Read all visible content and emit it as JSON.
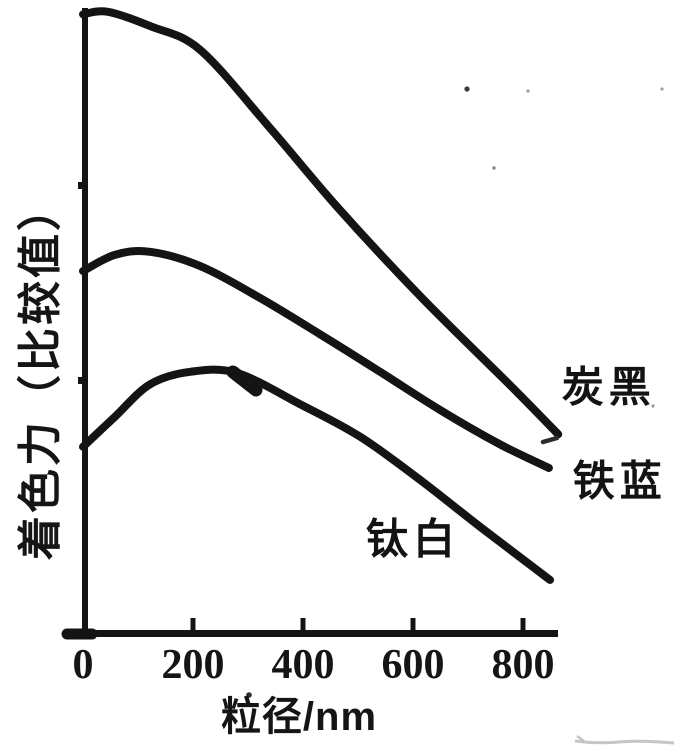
{
  "chart_data": {
    "type": "line",
    "title": "",
    "xlabel": "粒径/nm",
    "ylabel": "着色力（比较值）",
    "xlim": [
      0,
      865
    ],
    "ylim": [
      0,
      100
    ],
    "xticks": [
      0,
      200,
      400,
      600,
      800
    ],
    "xtick_labels": [
      "0",
      "200",
      "400",
      "600",
      "800"
    ],
    "yticks": [],
    "grid": false,
    "legend_position": "right-of-curve-ends",
    "ink_color": "#141414",
    "background_color": "#ffffff",
    "series": [
      {
        "id": "carbon-black",
        "name": "炭黑",
        "color": "#141414",
        "label_xy": [
          956,
          39.8
        ],
        "points": [
          [
            0,
            99.0
          ],
          [
            45,
            99.4
          ],
          [
            122,
            97.1
          ],
          [
            213,
            93.3
          ],
          [
            340,
            80.8
          ],
          [
            462,
            68.2
          ],
          [
            613,
            53.9
          ],
          [
            776,
            39.7
          ],
          [
            864,
            31.8
          ]
        ]
      },
      {
        "id": "iron-blue",
        "name": "铁蓝",
        "color": "#141414",
        "label_xy": [
          976,
          24.8
        ],
        "points": [
          [
            0,
            57.9
          ],
          [
            58,
            60.5
          ],
          [
            122,
            61.0
          ],
          [
            213,
            58.7
          ],
          [
            322,
            53.6
          ],
          [
            431,
            47.8
          ],
          [
            540,
            41.8
          ],
          [
            649,
            35.7
          ],
          [
            758,
            30.2
          ],
          [
            847,
            26.4
          ]
        ]
      },
      {
        "id": "titanium-white",
        "name": "钛白",
        "color": "#141414",
        "label_xy": [
          600,
          15.5
        ],
        "points": [
          [
            0,
            29.8
          ],
          [
            58,
            34.6
          ],
          [
            122,
            39.8
          ],
          [
            195,
            41.8
          ],
          [
            280,
            41.6
          ],
          [
            395,
            36.6
          ],
          [
            504,
            31.4
          ],
          [
            613,
            24.5
          ],
          [
            722,
            17.0
          ],
          [
            849,
            8.5
          ]
        ]
      }
    ]
  }
}
